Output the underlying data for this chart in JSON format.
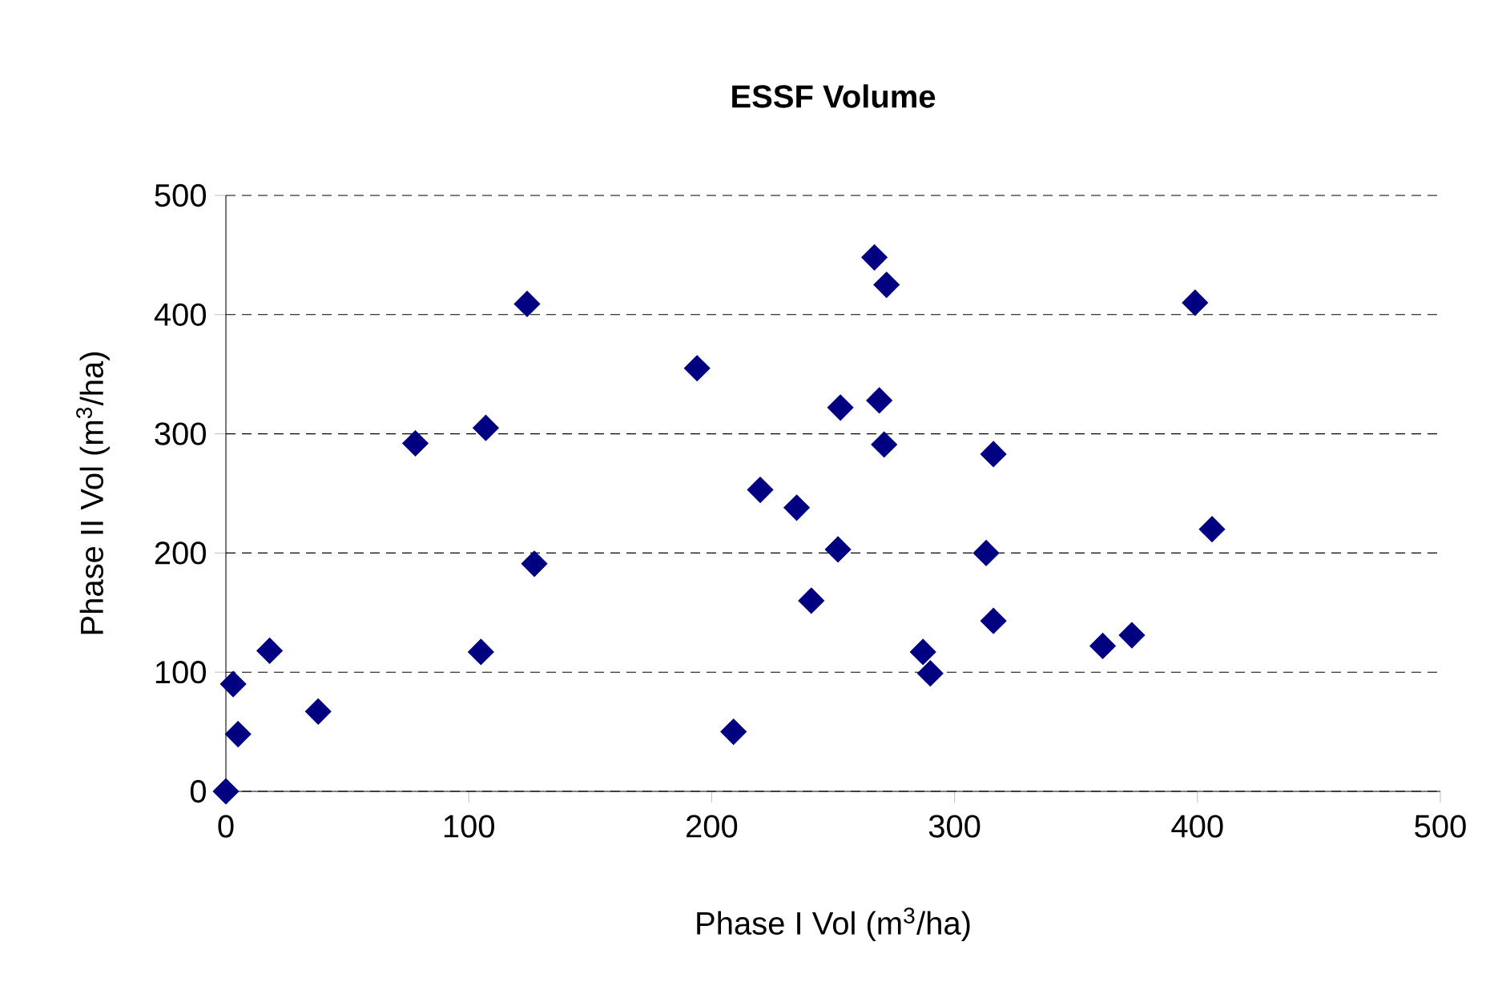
{
  "chart_data": {
    "type": "scatter",
    "title": "ESSF Volume",
    "xlabel": "Phase I Vol (m$^{3}$/ha)",
    "ylabel": "Phase II Vol (m$^{3}$/ha)",
    "x": [
      0,
      3,
      5,
      18,
      38,
      78,
      107,
      124,
      127,
      105,
      194,
      209,
      220,
      235,
      241,
      267,
      272,
      399,
      253,
      269,
      271,
      316,
      252,
      313,
      406,
      316,
      287,
      290,
      361,
      373
    ],
    "series": [
      {
        "color": "#000080",
        "values": [
          0,
          90,
          48,
          118,
          67,
          292,
          305,
          409,
          191,
          117,
          355,
          50,
          253,
          238,
          160,
          448,
          425,
          410,
          322,
          328,
          291,
          283,
          203,
          200,
          220,
          143,
          117,
          99,
          122,
          131
        ]
      }
    ],
    "xlim": [
      0,
      500
    ],
    "ylim": [
      0,
      500
    ],
    "xticks": [
      0,
      100,
      200,
      300,
      400,
      500
    ],
    "yticks": [
      0,
      100,
      200,
      300,
      400,
      500
    ],
    "grid": "y",
    "marker": "diamond"
  }
}
